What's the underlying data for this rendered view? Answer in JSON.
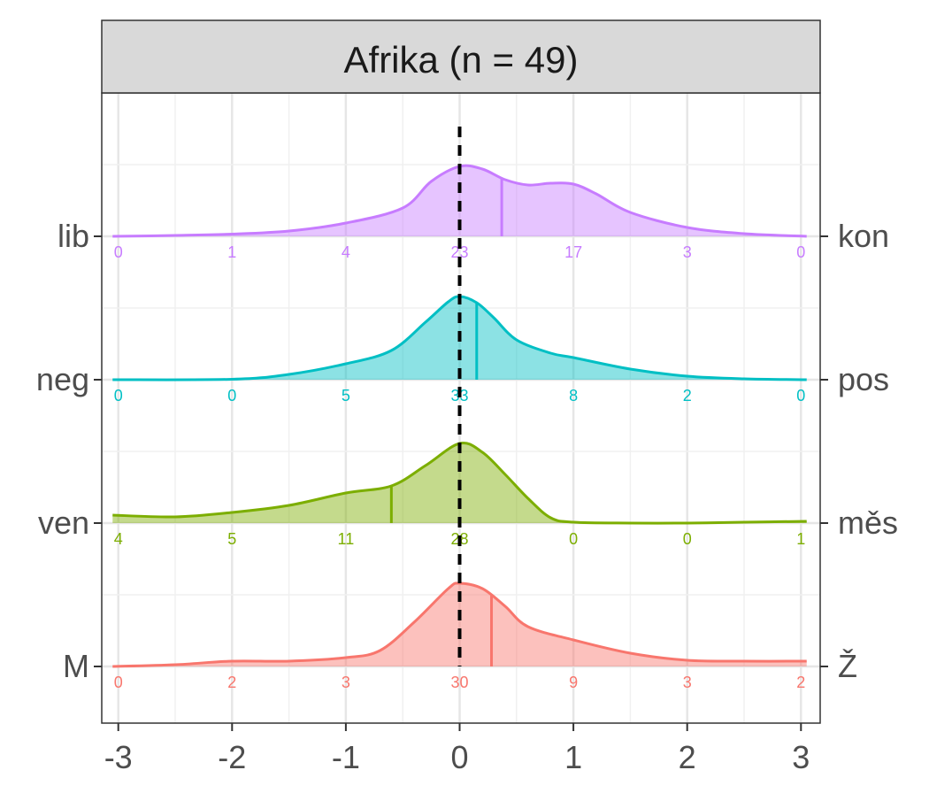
{
  "chart_data": {
    "type": "area",
    "title": "Afrika (n = 49)",
    "xlabel": "",
    "ylabel": "",
    "xlim": [
      -3.1,
      3.1
    ],
    "x_ticks": [
      "-3",
      "-2",
      "-1",
      "0",
      "1",
      "2",
      "3"
    ],
    "reference_line_x": 0,
    "grid": true,
    "legend": "none",
    "count_positions": [
      -3,
      -2,
      -1,
      0,
      1,
      2,
      3
    ],
    "series": [
      {
        "left_label": "lib",
        "right_label": "kon",
        "color": "#C77CFF",
        "mean": 0.37,
        "counts": [
          "0",
          "1",
          "4",
          "23",
          "17",
          "3",
          "0"
        ],
        "density": [
          [
            -3.05,
            0.0
          ],
          [
            -2.5,
            0.01
          ],
          [
            -2.0,
            0.025
          ],
          [
            -1.5,
            0.06
          ],
          [
            -1.0,
            0.15
          ],
          [
            -0.5,
            0.32
          ],
          [
            -0.25,
            0.62
          ],
          [
            0.0,
            0.79
          ],
          [
            0.2,
            0.76
          ],
          [
            0.4,
            0.64
          ],
          [
            0.6,
            0.58
          ],
          [
            0.8,
            0.6
          ],
          [
            1.0,
            0.59
          ],
          [
            1.2,
            0.48
          ],
          [
            1.5,
            0.27
          ],
          [
            2.0,
            0.1
          ],
          [
            2.5,
            0.03
          ],
          [
            3.05,
            0.0
          ]
        ]
      },
      {
        "left_label": "neg",
        "right_label": "pos",
        "color": "#00BFC4",
        "mean": 0.15,
        "counts": [
          "0",
          "0",
          "5",
          "33",
          "8",
          "2",
          "0"
        ],
        "density": [
          [
            -3.05,
            0.0
          ],
          [
            -2.0,
            0.005
          ],
          [
            -1.5,
            0.06
          ],
          [
            -1.0,
            0.18
          ],
          [
            -0.6,
            0.33
          ],
          [
            -0.3,
            0.65
          ],
          [
            -0.1,
            0.88
          ],
          [
            0.0,
            0.94
          ],
          [
            0.15,
            0.87
          ],
          [
            0.3,
            0.7
          ],
          [
            0.5,
            0.45
          ],
          [
            0.8,
            0.3
          ],
          [
            1.0,
            0.25
          ],
          [
            1.5,
            0.12
          ],
          [
            2.0,
            0.04
          ],
          [
            2.5,
            0.01
          ],
          [
            3.05,
            0.0
          ]
        ]
      },
      {
        "left_label": "ven",
        "right_label": "měs",
        "color": "#7CAE00",
        "mean": -0.6,
        "counts": [
          "4",
          "5",
          "11",
          "28",
          "0",
          "0",
          "1"
        ],
        "density": [
          [
            -3.05,
            0.09
          ],
          [
            -2.5,
            0.07
          ],
          [
            -2.0,
            0.12
          ],
          [
            -1.5,
            0.2
          ],
          [
            -1.0,
            0.34
          ],
          [
            -0.6,
            0.42
          ],
          [
            -0.3,
            0.65
          ],
          [
            0.0,
            0.9
          ],
          [
            0.2,
            0.8
          ],
          [
            0.4,
            0.55
          ],
          [
            0.6,
            0.28
          ],
          [
            0.8,
            0.06
          ],
          [
            1.0,
            0.01
          ],
          [
            1.5,
            0.0
          ],
          [
            2.0,
            0.0
          ],
          [
            2.5,
            0.01
          ],
          [
            3.05,
            0.02
          ]
        ]
      },
      {
        "left_label": "M",
        "right_label": "Ž",
        "color": "#F8766D",
        "mean": 0.28,
        "counts": [
          "0",
          "2",
          "3",
          "30",
          "9",
          "3",
          "2"
        ],
        "density": [
          [
            -3.05,
            0.0
          ],
          [
            -2.5,
            0.02
          ],
          [
            -2.0,
            0.06
          ],
          [
            -1.5,
            0.06
          ],
          [
            -1.0,
            0.1
          ],
          [
            -0.7,
            0.18
          ],
          [
            -0.4,
            0.5
          ],
          [
            -0.1,
            0.88
          ],
          [
            0.0,
            0.94
          ],
          [
            0.2,
            0.88
          ],
          [
            0.4,
            0.68
          ],
          [
            0.6,
            0.45
          ],
          [
            1.0,
            0.3
          ],
          [
            1.5,
            0.15
          ],
          [
            2.0,
            0.07
          ],
          [
            2.5,
            0.06
          ],
          [
            3.05,
            0.06
          ]
        ]
      }
    ]
  }
}
